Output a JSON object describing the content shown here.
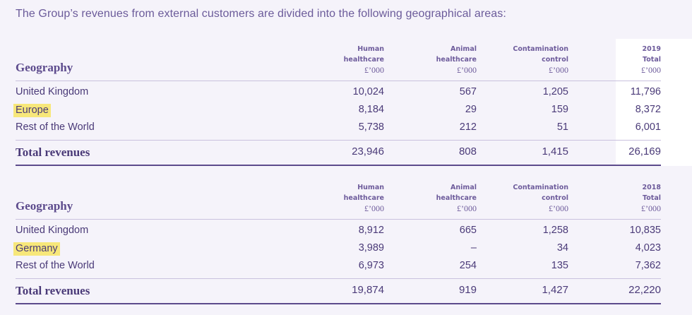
{
  "intro": "The Group’s revenues from external customers are divided into the following geographical areas:",
  "tables": [
    {
      "geography_label": "Geography",
      "headers": [
        {
          "line1": "Human",
          "line2": "healthcare",
          "unit": "£’000"
        },
        {
          "line1": "Animal",
          "line2": "healthcare",
          "unit": "£’000"
        },
        {
          "line1": "Contamination",
          "line2": "control",
          "unit": "£’000"
        },
        {
          "line1": "2019",
          "line2": "Total",
          "unit": "£’000"
        }
      ],
      "rows": [
        {
          "label": "United Kingdom",
          "values": [
            "10,024",
            "567",
            "1,205",
            "11,796"
          ]
        },
        {
          "label": "Europe",
          "values": [
            "8,184",
            "29",
            "159",
            "8,372"
          ]
        },
        {
          "label": "Rest of the World",
          "values": [
            "5,738",
            "212",
            "51",
            "6,001"
          ]
        }
      ],
      "total": {
        "label": "Total revenues",
        "values": [
          "23,946",
          "808",
          "1,415",
          "26,169"
        ]
      }
    },
    {
      "geography_label": "Geography",
      "headers": [
        {
          "line1": "Human",
          "line2": "healthcare",
          "unit": "£’000"
        },
        {
          "line1": "Animal",
          "line2": "healthcare",
          "unit": "£’000"
        },
        {
          "line1": "Contamination",
          "line2": "control",
          "unit": "£’000"
        },
        {
          "line1": "2018",
          "line2": "Total",
          "unit": "£’000"
        }
      ],
      "rows": [
        {
          "label": "United Kingdom",
          "values": [
            "8,912",
            "665",
            "1,258",
            "10,835"
          ]
        },
        {
          "label": "Germany",
          "values": [
            "3,989",
            "–",
            "34",
            "4,023"
          ]
        },
        {
          "label": "Rest of the World",
          "values": [
            "6,973",
            "254",
            "135",
            "7,362"
          ]
        }
      ],
      "total": {
        "label": "Total revenues",
        "values": [
          "19,874",
          "919",
          "1,427",
          "22,220"
        ]
      }
    }
  ],
  "colors": {
    "text": "#4a3a78",
    "highlight": "#f7e77a",
    "background": "#f5f3fa"
  }
}
